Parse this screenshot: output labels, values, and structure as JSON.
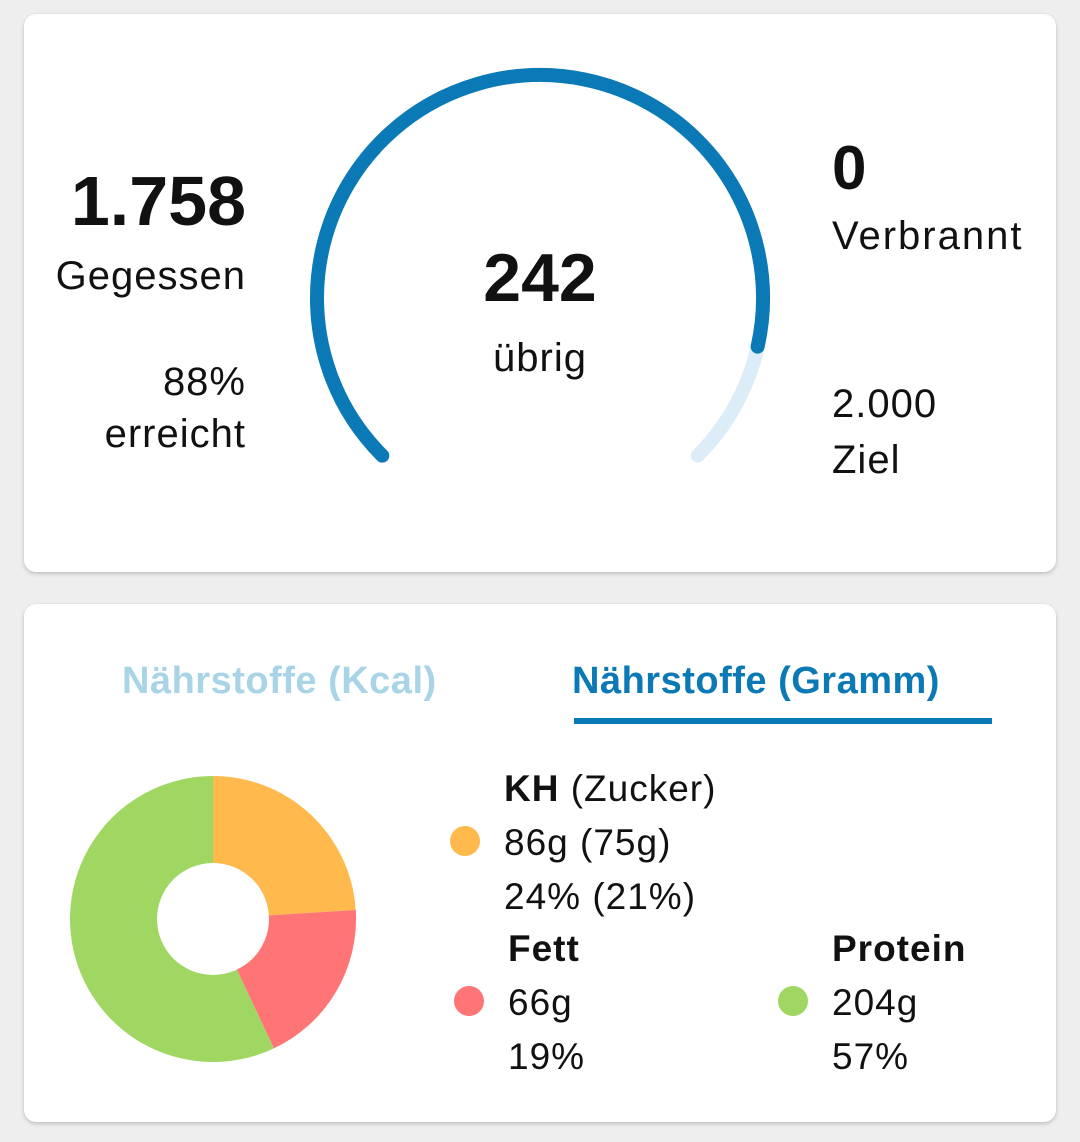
{
  "calories": {
    "eaten_value": "1.758",
    "eaten_label": "Gegessen",
    "reached_percent": "88%",
    "reached_label": "erreicht",
    "remaining_value": "242",
    "remaining_label": "übrig",
    "burned_value": "0",
    "burned_label": "Verbrannt",
    "goal_value": "2.000",
    "goal_label": "Ziel",
    "gauge_fraction": 0.88,
    "colors": {
      "gauge_fill": "#0a79b5",
      "gauge_track": "#dcedf8"
    }
  },
  "nutrients": {
    "tabs": [
      {
        "label": "Nährstoffe (Kcal)",
        "active": false
      },
      {
        "label": "Nährstoffe (Gramm)",
        "active": true
      }
    ],
    "carbs": {
      "name": "KH",
      "sub": "(Zucker)",
      "grams": "86g (75g)",
      "percent": "24% (21%)",
      "share": 24,
      "color": "#ffb94d"
    },
    "fat": {
      "name": "Fett",
      "grams": "66g",
      "percent": "19%",
      "share": 19,
      "color": "#ff7575"
    },
    "protein": {
      "name": "Protein",
      "grams": "204g",
      "percent": "57%",
      "share": 57,
      "color": "#a0d662"
    }
  }
}
